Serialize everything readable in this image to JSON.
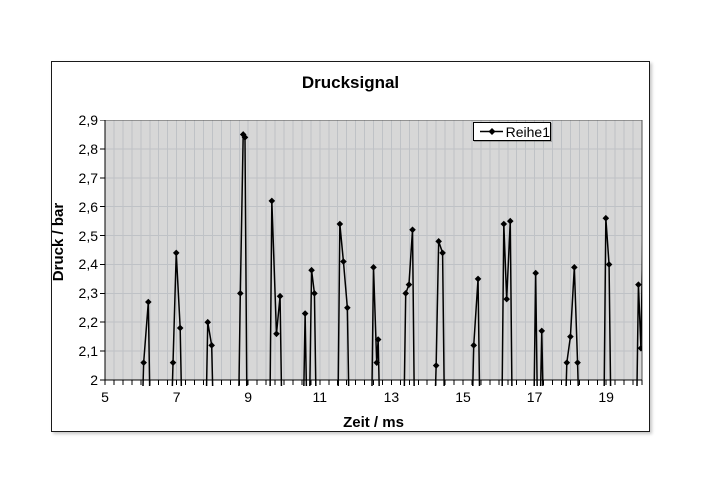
{
  "chart": {
    "title": "Drucksignal",
    "legend": {
      "label": "Reihe1"
    },
    "x_axis": {
      "title": "Zeit / ms",
      "min": 5,
      "max": 20,
      "major_step": 2,
      "minor_step": 0.25,
      "tick_values": [
        5,
        7,
        9,
        11,
        13,
        15,
        17,
        19
      ],
      "tick_labels": [
        "5",
        "7",
        "9",
        "11",
        "13",
        "15",
        "17",
        "19"
      ]
    },
    "y_axis": {
      "title": "Druck / bar",
      "min": 2.0,
      "max": 2.9,
      "major_step": 0.1,
      "tick_values": [
        2.9,
        2.8,
        2.7,
        2.6,
        2.5,
        2.4,
        2.3,
        2.2,
        2.1,
        2.0
      ],
      "tick_labels": [
        "2,9",
        "2,8",
        "2,7",
        "2,6",
        "2,5",
        "2,4",
        "2,3",
        "2,2",
        "2,1",
        "2"
      ]
    },
    "colors": {
      "plot_bg": "#d7d7d7",
      "grid": "#bfc2c6",
      "plot_border": "#4f4f4f",
      "axis": "#000000",
      "series": "#000000",
      "frame": "#1a1a1a",
      "legend_border": "#000000"
    }
  },
  "chart_data": {
    "type": "line",
    "title": "Drucksignal",
    "xlabel": "Zeit / ms",
    "ylabel": "Druck / bar",
    "xlim": [
      5,
      20
    ],
    "ylim": [
      2.0,
      2.9
    ],
    "grid": true,
    "legend": [
      "Reihe1"
    ],
    "legend_position": "top-right-inside",
    "series": [
      {
        "name": "Reihe1",
        "color": "#000000",
        "marker": "diamond",
        "note": "Spiky pressure signal. Vertices flagged 1 are visible data markers [x ms, y bar]; vertices flagged 0 are off-scale connector points where the signal dips below the axis minimum of 2.0 bar (line clipped at plot bottom / right edge).",
        "segments": [
          [
            [
              6.02,
              1.8,
              0
            ],
            [
              6.08,
              2.06,
              1
            ],
            [
              6.21,
              2.27,
              1
            ],
            [
              6.27,
              1.8,
              0
            ]
          ],
          [
            [
              6.84,
              1.8,
              0
            ],
            [
              6.9,
              2.06,
              1
            ],
            [
              6.99,
              2.44,
              1
            ],
            [
              7.1,
              2.18,
              1
            ],
            [
              7.16,
              1.8,
              0
            ]
          ],
          [
            [
              7.81,
              1.8,
              0
            ],
            [
              7.87,
              2.2,
              1
            ],
            [
              7.98,
              2.12,
              1
            ],
            [
              8.04,
              1.8,
              0
            ]
          ],
          [
            [
              8.72,
              1.8,
              0
            ],
            [
              8.78,
              2.3,
              1
            ],
            [
              8.86,
              2.85,
              1
            ],
            [
              8.91,
              2.84,
              1
            ],
            [
              8.97,
              1.8,
              0
            ]
          ],
          [
            [
              9.6,
              1.8,
              0
            ],
            [
              9.66,
              2.62,
              1
            ],
            [
              9.79,
              2.16,
              1
            ],
            [
              9.89,
              2.29,
              1
            ],
            [
              9.95,
              1.8,
              0
            ]
          ],
          [
            [
              10.53,
              1.8,
              0
            ],
            [
              10.59,
              2.23,
              1
            ],
            [
              10.65,
              1.8,
              0
            ]
          ],
          [
            [
              10.7,
              1.8,
              0
            ],
            [
              10.77,
              2.38,
              1
            ],
            [
              10.85,
              2.3,
              1
            ],
            [
              10.91,
              1.8,
              0
            ]
          ],
          [
            [
              11.5,
              1.8,
              0
            ],
            [
              11.56,
              2.54,
              1
            ],
            [
              11.66,
              2.41,
              1
            ],
            [
              11.77,
              2.25,
              1
            ],
            [
              11.83,
              1.8,
              0
            ]
          ],
          [
            [
              12.44,
              1.8,
              0
            ],
            [
              12.5,
              2.39,
              1
            ],
            [
              12.59,
              2.06,
              1
            ],
            [
              12.63,
              2.14,
              1
            ],
            [
              12.69,
              1.8,
              0
            ]
          ],
          [
            [
              13.34,
              1.8,
              0
            ],
            [
              13.4,
              2.3,
              1
            ],
            [
              13.49,
              2.33,
              1
            ],
            [
              13.59,
              2.52,
              1
            ],
            [
              13.65,
              1.8,
              0
            ]
          ],
          [
            [
              14.19,
              1.8,
              0
            ],
            [
              14.25,
              2.05,
              1
            ],
            [
              14.32,
              2.48,
              1
            ],
            [
              14.43,
              2.44,
              1
            ],
            [
              14.49,
              1.8,
              0
            ]
          ],
          [
            [
              15.24,
              1.8,
              0
            ],
            [
              15.3,
              2.12,
              1
            ],
            [
              15.42,
              2.35,
              1
            ],
            [
              15.48,
              1.8,
              0
            ]
          ],
          [
            [
              16.08,
              1.8,
              0
            ],
            [
              16.14,
              2.54,
              1
            ],
            [
              16.22,
              2.28,
              1
            ],
            [
              16.32,
              2.55,
              1
            ],
            [
              16.38,
              1.8,
              0
            ]
          ],
          [
            [
              16.97,
              1.8,
              0
            ],
            [
              17.03,
              2.37,
              1
            ],
            [
              17.09,
              1.8,
              0
            ]
          ],
          [
            [
              17.14,
              1.8,
              0
            ],
            [
              17.2,
              2.17,
              1
            ],
            [
              17.26,
              1.8,
              0
            ]
          ],
          [
            [
              17.84,
              1.8,
              0
            ],
            [
              17.9,
              2.06,
              1
            ],
            [
              18.0,
              2.15,
              1
            ],
            [
              18.11,
              2.39,
              1
            ],
            [
              18.2,
              2.06,
              1
            ],
            [
              18.26,
              1.8,
              0
            ]
          ],
          [
            [
              18.93,
              1.8,
              0
            ],
            [
              18.99,
              2.56,
              1
            ],
            [
              19.08,
              2.4,
              1
            ],
            [
              19.14,
              1.8,
              0
            ]
          ],
          [
            [
              19.84,
              1.8,
              0
            ],
            [
              19.9,
              2.33,
              1
            ],
            [
              19.97,
              2.11,
              1
            ],
            [
              20.03,
              2.55,
              0
            ]
          ]
        ]
      }
    ]
  }
}
